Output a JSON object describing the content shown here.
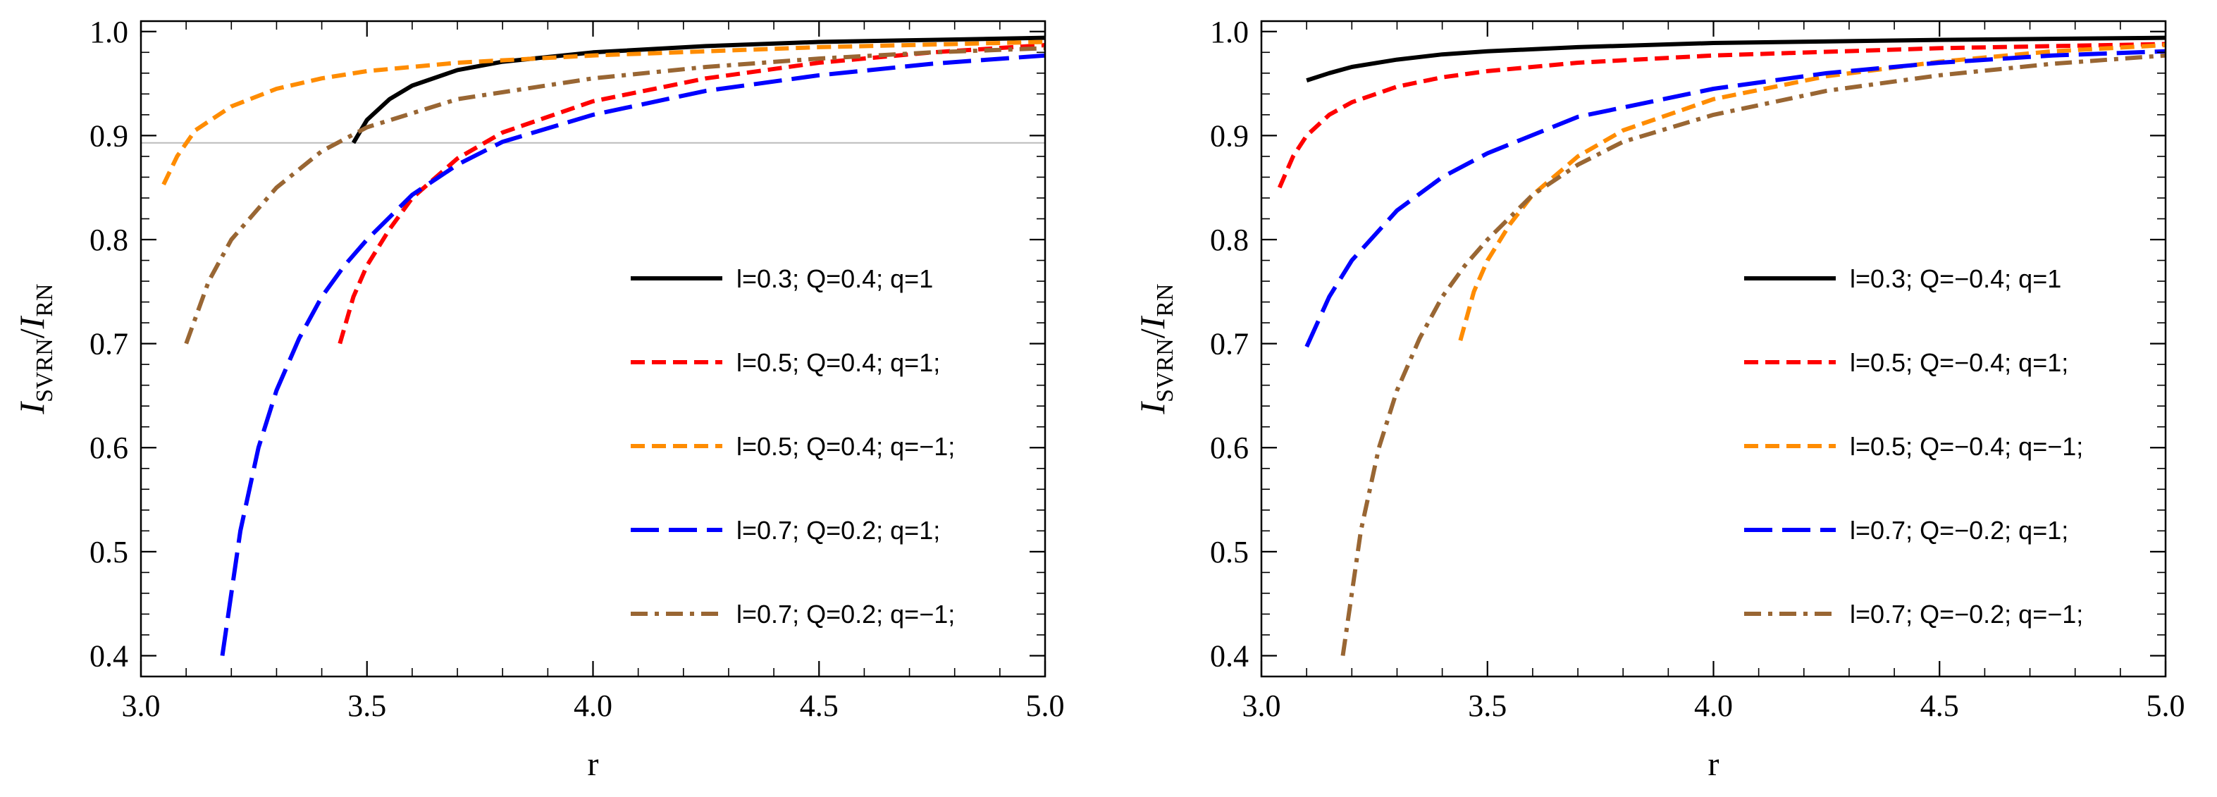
{
  "chart_data": [
    {
      "type": "line",
      "title": "",
      "xlabel": "r",
      "ylabel": {
        "main": "I",
        "sub_num": "SVRN",
        "sep": "/",
        "main2": "I",
        "sub_den": "RN"
      },
      "xlim": [
        3.0,
        5.0
      ],
      "ylim": [
        0.38,
        1.01
      ],
      "xticks": [
        "3.0",
        "3.5",
        "4.0",
        "4.5",
        "5.0"
      ],
      "yticks": [
        "0.4",
        "0.5",
        "0.6",
        "0.7",
        "0.8",
        "0.9",
        "1.0"
      ],
      "reference_line_y": 0.893,
      "legend": "center-right",
      "series": [
        {
          "name": "l=0.3; Q=0.4; q=1",
          "color": "#000000",
          "style": "solid",
          "x": [
            3.47,
            3.5,
            3.55,
            3.6,
            3.7,
            3.8,
            4.0,
            4.25,
            4.5,
            4.75,
            5.0
          ],
          "y": [
            0.893,
            0.915,
            0.935,
            0.948,
            0.963,
            0.971,
            0.98,
            0.986,
            0.99,
            0.992,
            0.994
          ]
        },
        {
          "name": "l=0.5; Q=0.4; q=1;",
          "color": "#ff0000",
          "style": "dash",
          "x": [
            3.44,
            3.47,
            3.5,
            3.55,
            3.6,
            3.7,
            3.8,
            4.0,
            4.25,
            4.5,
            4.75,
            5.0
          ],
          "y": [
            0.7,
            0.745,
            0.775,
            0.81,
            0.84,
            0.878,
            0.903,
            0.933,
            0.955,
            0.97,
            0.98,
            0.987
          ]
        },
        {
          "name": "l=0.5; Q=0.4; q=−1;",
          "color": "#ff8c00",
          "style": "dash",
          "x": [
            3.05,
            3.08,
            3.12,
            3.2,
            3.3,
            3.4,
            3.5,
            3.7,
            4.0,
            4.5,
            5.0
          ],
          "y": [
            0.853,
            0.88,
            0.905,
            0.928,
            0.945,
            0.955,
            0.962,
            0.97,
            0.977,
            0.985,
            0.99
          ]
        },
        {
          "name": "l=0.7; Q=0.2; q=1;",
          "color": "#0000ff",
          "style": "longdash",
          "x": [
            3.18,
            3.22,
            3.26,
            3.3,
            3.35,
            3.4,
            3.45,
            3.5,
            3.6,
            3.7,
            3.8,
            4.0,
            4.25,
            4.5,
            4.75,
            5.0
          ],
          "y": [
            0.4,
            0.52,
            0.6,
            0.655,
            0.705,
            0.745,
            0.775,
            0.8,
            0.843,
            0.872,
            0.894,
            0.92,
            0.943,
            0.958,
            0.969,
            0.977
          ]
        },
        {
          "name": "l=0.7; Q=0.2; q=−1;",
          "color": "#996633",
          "style": "dashdot",
          "x": [
            3.1,
            3.15,
            3.2,
            3.3,
            3.4,
            3.5,
            3.7,
            4.0,
            4.25,
            4.5,
            4.75,
            5.0
          ],
          "y": [
            0.7,
            0.76,
            0.8,
            0.85,
            0.885,
            0.908,
            0.935,
            0.955,
            0.966,
            0.974,
            0.98,
            0.984
          ]
        }
      ]
    },
    {
      "type": "line",
      "title": "",
      "xlabel": "r",
      "ylabel": {
        "main": "I",
        "sub_num": "SVRN",
        "sep": "/",
        "main2": "I",
        "sub_den": "RN"
      },
      "xlim": [
        3.0,
        5.0
      ],
      "ylim": [
        0.38,
        1.01
      ],
      "xticks": [
        "3.0",
        "3.5",
        "4.0",
        "4.5",
        "5.0"
      ],
      "yticks": [
        "0.4",
        "0.5",
        "0.6",
        "0.7",
        "0.8",
        "0.9",
        "1.0"
      ],
      "reference_line_y": null,
      "legend": "center-right",
      "series": [
        {
          "name": "l=0.3; Q=−0.4; q=1",
          "color": "#000000",
          "style": "solid",
          "x": [
            3.1,
            3.15,
            3.2,
            3.3,
            3.4,
            3.5,
            3.7,
            4.0,
            4.5,
            5.0
          ],
          "y": [
            0.953,
            0.96,
            0.966,
            0.973,
            0.978,
            0.981,
            0.985,
            0.989,
            0.992,
            0.994
          ]
        },
        {
          "name": "l=0.5; Q=−0.4; q=1;",
          "color": "#ff0000",
          "style": "dash",
          "x": [
            3.04,
            3.07,
            3.1,
            3.15,
            3.2,
            3.3,
            3.4,
            3.5,
            3.7,
            4.0,
            4.5,
            5.0
          ],
          "y": [
            0.85,
            0.88,
            0.9,
            0.92,
            0.932,
            0.947,
            0.956,
            0.962,
            0.97,
            0.977,
            0.984,
            0.988
          ]
        },
        {
          "name": "l=0.5; Q=−0.4; q=−1;",
          "color": "#ff8c00",
          "style": "dash",
          "x": [
            3.44,
            3.47,
            3.5,
            3.55,
            3.6,
            3.7,
            3.8,
            4.0,
            4.25,
            4.5,
            4.75,
            5.0
          ],
          "y": [
            0.703,
            0.75,
            0.78,
            0.815,
            0.843,
            0.88,
            0.905,
            0.935,
            0.957,
            0.971,
            0.981,
            0.987
          ]
        },
        {
          "name": "l=0.7; Q=−0.2; q=1;",
          "color": "#0000ff",
          "style": "longdash",
          "x": [
            3.1,
            3.15,
            3.2,
            3.3,
            3.4,
            3.5,
            3.7,
            4.0,
            4.25,
            4.5,
            4.75,
            5.0
          ],
          "y": [
            0.697,
            0.745,
            0.78,
            0.828,
            0.86,
            0.883,
            0.918,
            0.945,
            0.96,
            0.97,
            0.977,
            0.981
          ]
        },
        {
          "name": "l=0.7; Q=−0.2; q=−1;",
          "color": "#996633",
          "style": "dashdot",
          "x": [
            3.18,
            3.22,
            3.26,
            3.3,
            3.35,
            3.4,
            3.45,
            3.5,
            3.6,
            3.7,
            3.8,
            4.0,
            4.25,
            4.5,
            4.75,
            5.0
          ],
          "y": [
            0.4,
            0.52,
            0.6,
            0.655,
            0.705,
            0.745,
            0.775,
            0.8,
            0.843,
            0.872,
            0.894,
            0.92,
            0.943,
            0.958,
            0.969,
            0.977
          ]
        }
      ]
    }
  ]
}
